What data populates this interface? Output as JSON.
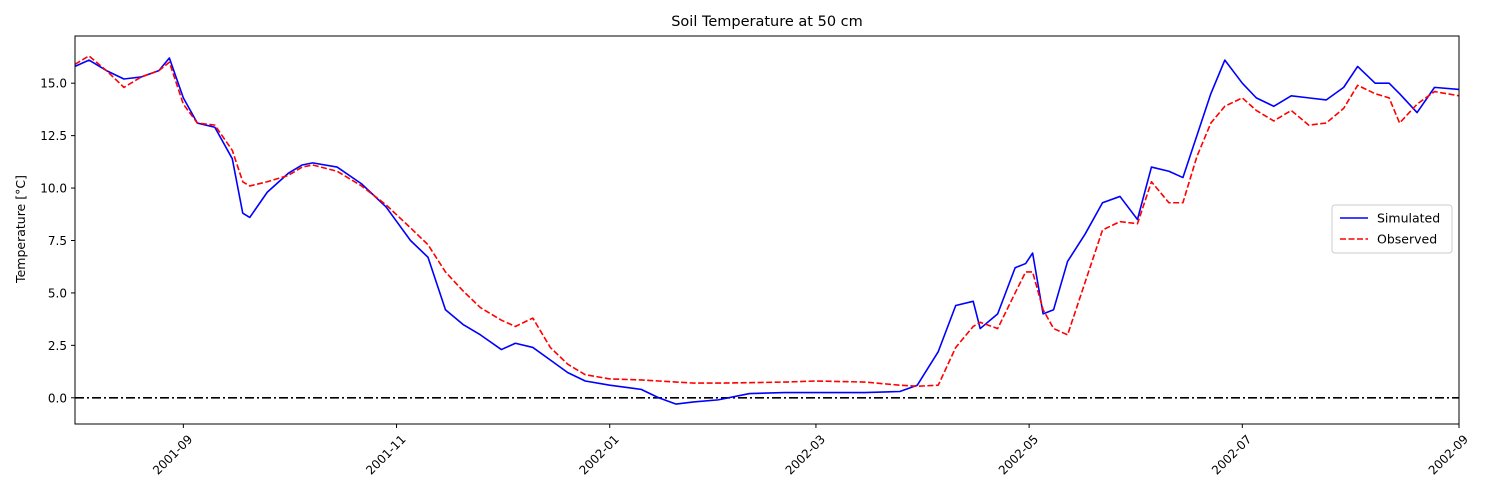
{
  "chart_data": {
    "type": "line",
    "title": "Soil Temperature at 50 cm",
    "xlabel": "",
    "ylabel": "Temperature [°C]",
    "xlim": [
      "2001-08-01",
      "2002-09-01"
    ],
    "ylim": [
      -1.25,
      17.25
    ],
    "x_ticks": [
      "2001-09",
      "2001-11",
      "2002-01",
      "2002-03",
      "2002-05",
      "2002-07",
      "2002-09"
    ],
    "y_ticks": [
      "0.0",
      "2.5",
      "5.0",
      "7.5",
      "10.0",
      "12.5",
      "15.0"
    ],
    "grid": false,
    "legend_position": "center-right",
    "reference_line": {
      "y": 0.0,
      "style": "dash-dot",
      "color": "#000000"
    },
    "series": [
      {
        "name": "Simulated",
        "color": "#0000ff",
        "dash": "solid",
        "x": [
          "2001-08-01",
          "2001-08-05",
          "2001-08-10",
          "2001-08-15",
          "2001-08-20",
          "2001-08-25",
          "2001-08-28",
          "2001-09-01",
          "2001-09-05",
          "2001-09-10",
          "2001-09-15",
          "2001-09-18",
          "2001-09-20",
          "2001-09-25",
          "2001-10-01",
          "2001-10-05",
          "2001-10-08",
          "2001-10-15",
          "2001-10-22",
          "2001-10-29",
          "2001-11-05",
          "2001-11-10",
          "2001-11-15",
          "2001-11-20",
          "2001-11-25",
          "2001-12-01",
          "2001-12-05",
          "2001-12-10",
          "2001-12-15",
          "2001-12-20",
          "2001-12-25",
          "2002-01-01",
          "2002-01-10",
          "2002-01-15",
          "2002-01-20",
          "2002-01-25",
          "2002-02-01",
          "2002-02-10",
          "2002-02-20",
          "2002-03-01",
          "2002-03-15",
          "2002-03-25",
          "2002-03-30",
          "2002-04-05",
          "2002-04-10",
          "2002-04-15",
          "2002-04-17",
          "2002-04-22",
          "2002-04-27",
          "2002-04-30",
          "2002-05-02",
          "2002-05-05",
          "2002-05-08",
          "2002-05-12",
          "2002-05-17",
          "2002-05-22",
          "2002-05-27",
          "2002-06-01",
          "2002-06-05",
          "2002-06-10",
          "2002-06-14",
          "2002-06-18",
          "2002-06-22",
          "2002-06-26",
          "2002-07-01",
          "2002-07-05",
          "2002-07-10",
          "2002-07-15",
          "2002-07-20",
          "2002-07-25",
          "2002-07-30",
          "2002-08-03",
          "2002-08-08",
          "2002-08-12",
          "2002-08-15",
          "2002-08-20",
          "2002-08-25",
          "2002-09-01"
        ],
        "values": [
          15.8,
          16.1,
          15.6,
          15.2,
          15.3,
          15.6,
          16.2,
          14.3,
          13.1,
          12.9,
          11.4,
          8.8,
          8.6,
          9.8,
          10.7,
          11.1,
          11.2,
          11.0,
          10.2,
          9.1,
          7.5,
          6.7,
          4.2,
          3.5,
          3.0,
          2.3,
          2.6,
          2.4,
          1.8,
          1.2,
          0.8,
          0.6,
          0.4,
          0.0,
          -0.3,
          -0.2,
          -0.1,
          0.2,
          0.25,
          0.25,
          0.25,
          0.3,
          0.6,
          2.2,
          4.4,
          4.6,
          3.3,
          4.0,
          6.2,
          6.4,
          6.9,
          4.0,
          4.2,
          6.5,
          7.8,
          9.3,
          9.6,
          8.5,
          11.0,
          10.8,
          10.5,
          12.5,
          14.5,
          16.1,
          15.0,
          14.3,
          13.9,
          14.4,
          14.3,
          14.2,
          14.8,
          15.8,
          15.0,
          15.0,
          14.5,
          13.6,
          14.8,
          14.7
        ]
      },
      {
        "name": "Observed",
        "color": "#ff0000",
        "dash": "dashed",
        "x": [
          "2001-08-01",
          "2001-08-05",
          "2001-08-10",
          "2001-08-15",
          "2001-08-20",
          "2001-08-25",
          "2001-08-28",
          "2001-09-01",
          "2001-09-05",
          "2001-09-10",
          "2001-09-15",
          "2001-09-18",
          "2001-09-20",
          "2001-09-25",
          "2001-10-01",
          "2001-10-05",
          "2001-10-08",
          "2001-10-15",
          "2001-10-22",
          "2001-10-29",
          "2001-11-05",
          "2001-11-10",
          "2001-11-15",
          "2001-11-20",
          "2001-11-25",
          "2001-12-01",
          "2001-12-05",
          "2001-12-10",
          "2001-12-15",
          "2001-12-20",
          "2001-12-25",
          "2002-01-01",
          "2002-01-10",
          "2002-01-15",
          "2002-01-20",
          "2002-01-25",
          "2002-02-01",
          "2002-02-10",
          "2002-02-20",
          "2002-03-01",
          "2002-03-15",
          "2002-03-25",
          "2002-03-30",
          "2002-04-05",
          "2002-04-10",
          "2002-04-15",
          "2002-04-17",
          "2002-04-22",
          "2002-04-27",
          "2002-04-30",
          "2002-05-02",
          "2002-05-05",
          "2002-05-08",
          "2002-05-12",
          "2002-05-17",
          "2002-05-22",
          "2002-05-27",
          "2002-06-01",
          "2002-06-05",
          "2002-06-10",
          "2002-06-14",
          "2002-06-18",
          "2002-06-22",
          "2002-06-26",
          "2002-07-01",
          "2002-07-05",
          "2002-07-10",
          "2002-07-15",
          "2002-07-20",
          "2002-07-25",
          "2002-07-30",
          "2002-08-03",
          "2002-08-08",
          "2002-08-12",
          "2002-08-15",
          "2002-08-20",
          "2002-08-25",
          "2002-09-01"
        ],
        "values": [
          15.9,
          16.3,
          15.6,
          14.8,
          15.3,
          15.6,
          16.0,
          14.0,
          13.1,
          13.0,
          11.8,
          10.3,
          10.1,
          10.3,
          10.6,
          11.0,
          11.1,
          10.8,
          10.1,
          9.2,
          8.1,
          7.3,
          6.0,
          5.1,
          4.3,
          3.7,
          3.4,
          3.8,
          2.4,
          1.6,
          1.1,
          0.9,
          0.85,
          0.8,
          0.75,
          0.7,
          0.7,
          0.72,
          0.75,
          0.8,
          0.75,
          0.6,
          0.55,
          0.6,
          2.4,
          3.4,
          3.6,
          3.3,
          5.0,
          6.0,
          6.0,
          4.2,
          3.3,
          3.0,
          5.5,
          8.0,
          8.4,
          8.3,
          10.3,
          9.3,
          9.3,
          11.5,
          13.1,
          13.9,
          14.3,
          13.7,
          13.2,
          13.7,
          13.0,
          13.1,
          13.8,
          14.9,
          14.5,
          14.3,
          13.1,
          14.0,
          14.6,
          14.4
        ]
      }
    ]
  }
}
